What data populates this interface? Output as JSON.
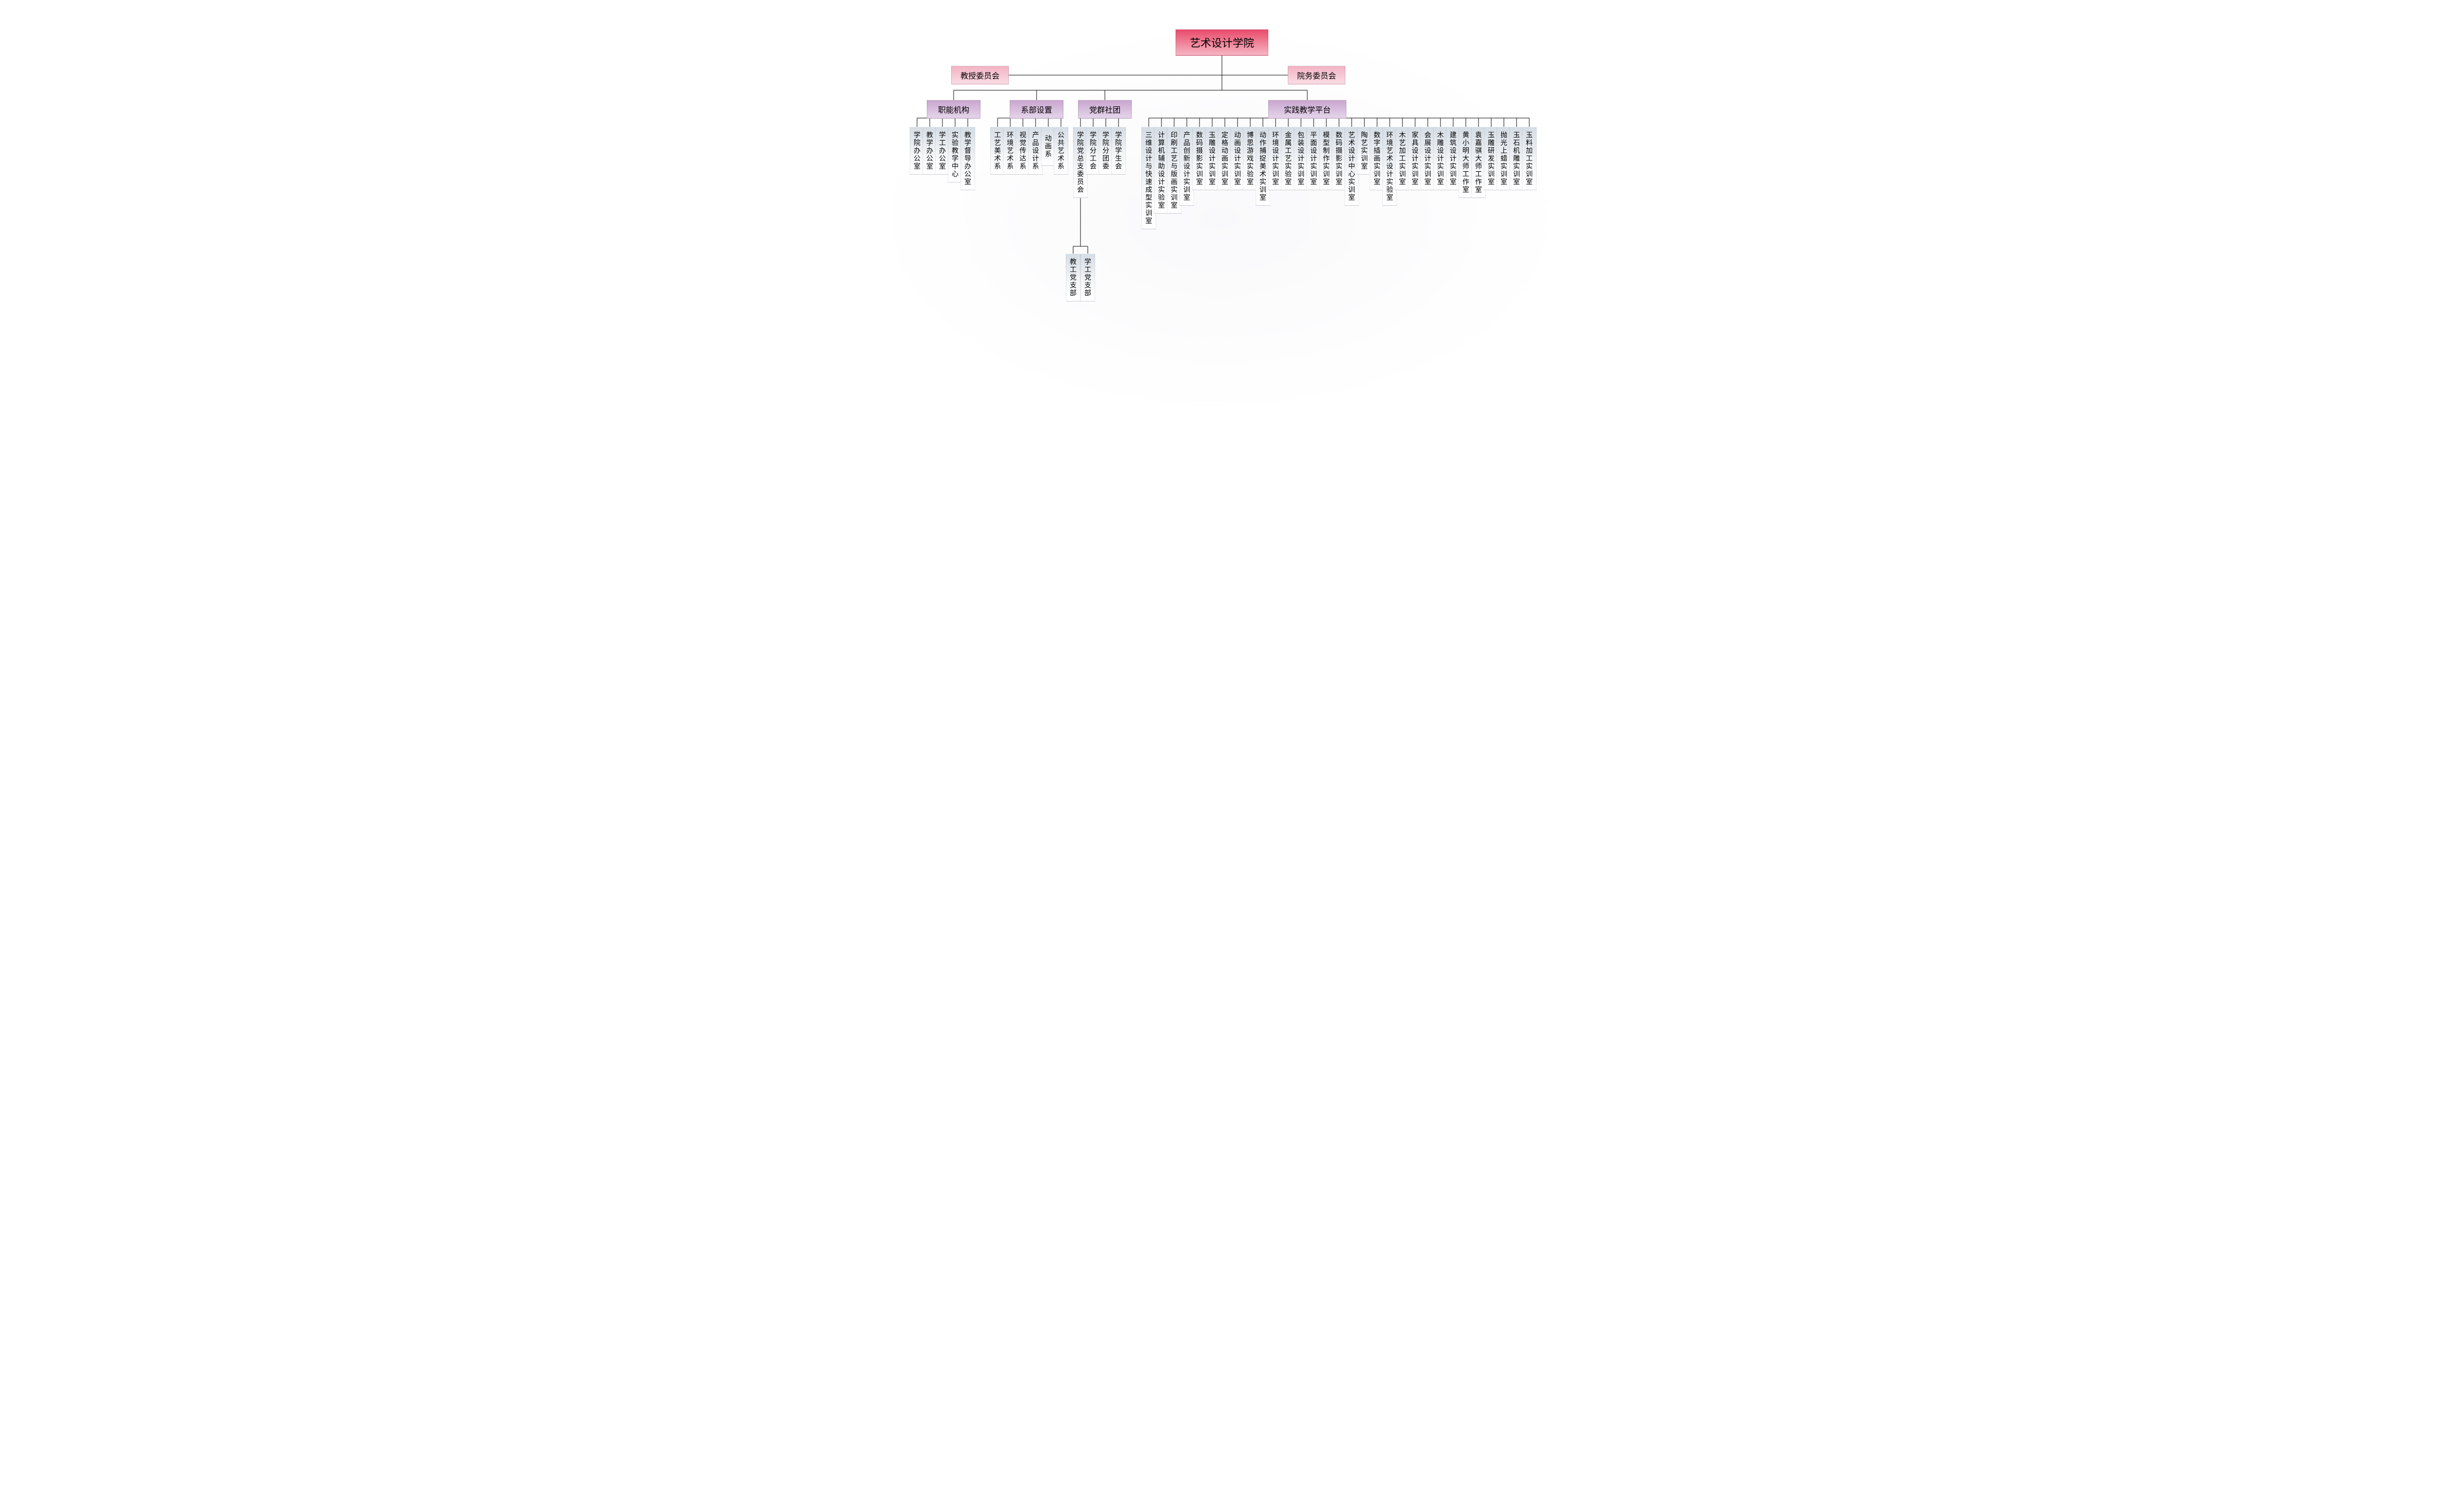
{
  "type": "org-chart",
  "background_color": "#ffffff",
  "line_color": "#000000",
  "line_width": 1,
  "colors": {
    "root_gradient": [
      "#e94a6a",
      "#f5b6c4"
    ],
    "pink_gradient": [
      "#f4b3c4",
      "#f9dce4"
    ],
    "purple_gradient": [
      "#c9a6d0",
      "#e5d4ea"
    ],
    "leaf_gradient": [
      "#d5dde5",
      "#f5f7f9",
      "#ffffff"
    ]
  },
  "fonts": {
    "root_size": 22,
    "branch_size": 16,
    "leaf_size": 14
  },
  "root": {
    "label": "艺术设计学院"
  },
  "side_left": {
    "label": "教授委员会"
  },
  "side_right": {
    "label": "院务委员会"
  },
  "branches": [
    {
      "id": "b1",
      "label": "职能机构",
      "children": [
        "学院办公室",
        "教学办公室",
        "学工办公室",
        "实验教学中心",
        "教学督导办公室"
      ]
    },
    {
      "id": "b2",
      "label": "系部设置",
      "children": [
        "工艺美术系",
        "环境艺术系",
        "视觉传达系",
        "产品设计系",
        "动画系",
        "公共艺术系"
      ]
    },
    {
      "id": "b3",
      "label": "党群社团",
      "children": [
        "学院党总支委员会",
        "学院分工会",
        "学院分团委",
        "学院学生会"
      ],
      "sub": {
        "parent_index": 0,
        "children": [
          "教工党支部",
          "学工党支部"
        ]
      }
    },
    {
      "id": "b4",
      "label": "实践教学平台",
      "children": [
        "三维设计与快速成型实训室",
        "计算机辅助设计实验室",
        "印刷工艺与版画实训室",
        "产品创新设计实训室",
        "数码摄影实训室",
        "玉雕设计实训室",
        "定格动画实训室",
        "动画设计实训室",
        "博思游戏实验室",
        "动作捕捉美术实训室",
        "环境设计实训室",
        "金属工艺实验室",
        "包装设计实训室",
        "平面设计实训室",
        "模型制作实训室",
        "数码摄影实训室",
        "艺术设计中心实训室",
        "陶艺实训室",
        "数字插画实训室",
        "环境艺术设计实验室",
        "木艺加工实训室",
        "家具设计实训室",
        "会展设计实训室",
        "木雕设计实训室",
        "建筑设计实训室",
        "黄小明大师工作室",
        "袁嘉骐大师工作室",
        "玉雕研发实训室",
        "抛光上蜡实训室",
        "玉石机雕实训室",
        "玉料加工实训室"
      ]
    }
  ]
}
